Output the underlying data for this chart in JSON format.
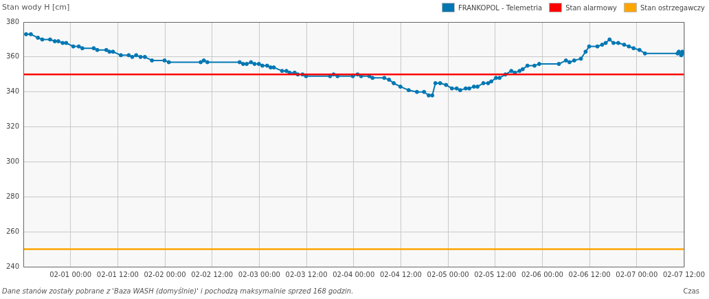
{
  "chart_data": {
    "type": "line",
    "ylabel": "Stan wody H [cm]",
    "xlabel": "Czas",
    "legend": "top right",
    "marker": "circle",
    "line_style": "solid",
    "grid": true,
    "annotations": [
      "Dane stanów zostały pobrane z 'Baza WASH (domyślnie)' i pochodzą maksymalnie sprzed 168 godzin."
    ],
    "xlim": [
      "--01-31T12:00",
      "--02-07T12:00"
    ],
    "xticks": [
      {
        "value": "--02-01T00:00",
        "label": "02-01 00:00"
      },
      {
        "value": "--02-01T12:00",
        "label": "02-01 12:00"
      },
      {
        "value": "--02-02T00:00",
        "label": "02-02 00:00"
      },
      {
        "value": "--02-02T12:00",
        "label": "02-02 12:00"
      },
      {
        "value": "--02-03T00:00",
        "label": "02-03 00:00"
      },
      {
        "value": "--02-03T12:00",
        "label": "02-03 12:00"
      },
      {
        "value": "--02-04T00:00",
        "label": "02-04 00:00"
      },
      {
        "value": "--02-04T12:00",
        "label": "02-04 12:00"
      },
      {
        "value": "--02-05T00:00",
        "label": "02-05 00:00"
      },
      {
        "value": "--02-05T12:00",
        "label": "02-05 12:00"
      },
      {
        "value": "--02-06T00:00",
        "label": "02-06 00:00"
      },
      {
        "value": "--02-06T12:00",
        "label": "02-06 12:00"
      },
      {
        "value": "--02-07T00:00",
        "label": "02-07 00:00"
      },
      {
        "value": "--02-07T12:00",
        "label": "02-07 12:00"
      }
    ],
    "ylim": [
      240,
      380
    ],
    "yticks": [
      240,
      260,
      280,
      300,
      320,
      340,
      360,
      380
    ],
    "ref_lines": [
      {
        "axis": "y",
        "value": 350,
        "label": "Stan alarmowy",
        "color": "#ff0000"
      },
      {
        "axis": "y",
        "value": 250,
        "label": "Stan ostrzegawczy",
        "color": "#ffa500"
      }
    ],
    "series": [
      {
        "name": "FRANKOPOL - Telemetria",
        "color": "#0077b3",
        "x": [
          "--01-31T12:42",
          "--01-31T13:54",
          "--01-31T15:42",
          "--01-31T16:48",
          "--01-31T18:48",
          "--01-31T20:00",
          "--01-31T20:54",
          "--01-31T22:00",
          "--01-31T22:54",
          "--02-01T00:42",
          "--02-01T02:06",
          "--02-01T03:00",
          "--02-01T05:54",
          "--02-01T06:48",
          "--02-01T09:06",
          "--02-01T09:54",
          "--02-01T10:48",
          "--02-01T12:48",
          "--02-01T14:48",
          "--02-01T15:42",
          "--02-01T16:42",
          "--02-01T17:48",
          "--02-01T18:54",
          "--02-01T20:42",
          "--02-01T23:54",
          "--02-02T01:00",
          "--02-02T09:06",
          "--02-02T09:54",
          "--02-02T10:48",
          "--02-02T19:00",
          "--02-02T19:54",
          "--02-02T20:48",
          "--02-02T21:54",
          "--02-02T22:48",
          "--02-02T23:54",
          "--02-03T00:48",
          "--02-03T02:00",
          "--02-03T02:54",
          "--02-03T03:42",
          "--02-03T05:48",
          "--02-03T06:54",
          "--02-03T07:42",
          "--02-03T09:00",
          "--02-03T09:48",
          "--02-03T11:00",
          "--02-03T11:54",
          "--02-03T18:00",
          "--02-03T18:54",
          "--02-03T19:54",
          "--02-03T23:48",
          "--02-04T01:00",
          "--02-04T01:54",
          "--02-04T04:00",
          "--02-04T04:48",
          "--02-04T07:48",
          "--02-04T09:00",
          "--02-04T10:12",
          "--02-04T11:54",
          "--02-04T14:00",
          "--02-04T16:06",
          "--02-04T17:54",
          "--02-04T19:06",
          "--02-04T20:00",
          "--02-04T20:48",
          "--02-04T22:00",
          "--02-04T23:30",
          "--02-05T01:00",
          "--02-05T02:12",
          "--02-05T03:06",
          "--02-05T04:30",
          "--02-05T05:24",
          "--02-05T06:36",
          "--02-05T07:30",
          "--02-05T09:00",
          "--02-05T10:12",
          "--02-05T11:00",
          "--02-05T12:12",
          "--02-05T13:06",
          "--02-05T14:36",
          "--02-05T16:06",
          "--02-05T17:00",
          "--02-05T18:12",
          "--02-05T19:00",
          "--02-05T20:12",
          "--02-05T22:00",
          "--02-05T23:12",
          "--02-06T04:12",
          "--02-06T06:00",
          "--02-06T06:54",
          "--02-06T08:06",
          "--02-06T09:48",
          "--02-06T11:00",
          "--02-06T11:54",
          "--02-06T14:00",
          "--02-06T15:12",
          "--02-06T16:06",
          "--02-06T17:06",
          "--02-06T18:06",
          "--02-06T19:18",
          "--02-06T20:48",
          "--02-06T22:00",
          "--02-06T23:12",
          "--02-07T00:42",
          "--02-07T02:06",
          "--02-07T10:24",
          "--02-07T10:42",
          "--02-07T11:18",
          "--02-07T11:36",
          "--02-07T11:54"
        ],
        "values": [
          373,
          373,
          371,
          370,
          370,
          369,
          369,
          368,
          368,
          366,
          366,
          365,
          365,
          364,
          364,
          363,
          363,
          361,
          361,
          360,
          361,
          360,
          360,
          358,
          358,
          357,
          357,
          358,
          357,
          357,
          356,
          356,
          357,
          356,
          356,
          355,
          355,
          354,
          354,
          352,
          352,
          351,
          351,
          350,
          350,
          349,
          349,
          350,
          349,
          349,
          350,
          349,
          349,
          348,
          348,
          347,
          345,
          343,
          341,
          340,
          340,
          338,
          338,
          345,
          345,
          344,
          342,
          342,
          341,
          342,
          342,
          343,
          343,
          345,
          345,
          346,
          348,
          348,
          350,
          352,
          351,
          352,
          353,
          355,
          355,
          356,
          356,
          358,
          357,
          358,
          359,
          363,
          366,
          366,
          367,
          368,
          370,
          368,
          368,
          367,
          366,
          365,
          364,
          362,
          362,
          363,
          361,
          363,
          362
        ]
      }
    ]
  }
}
